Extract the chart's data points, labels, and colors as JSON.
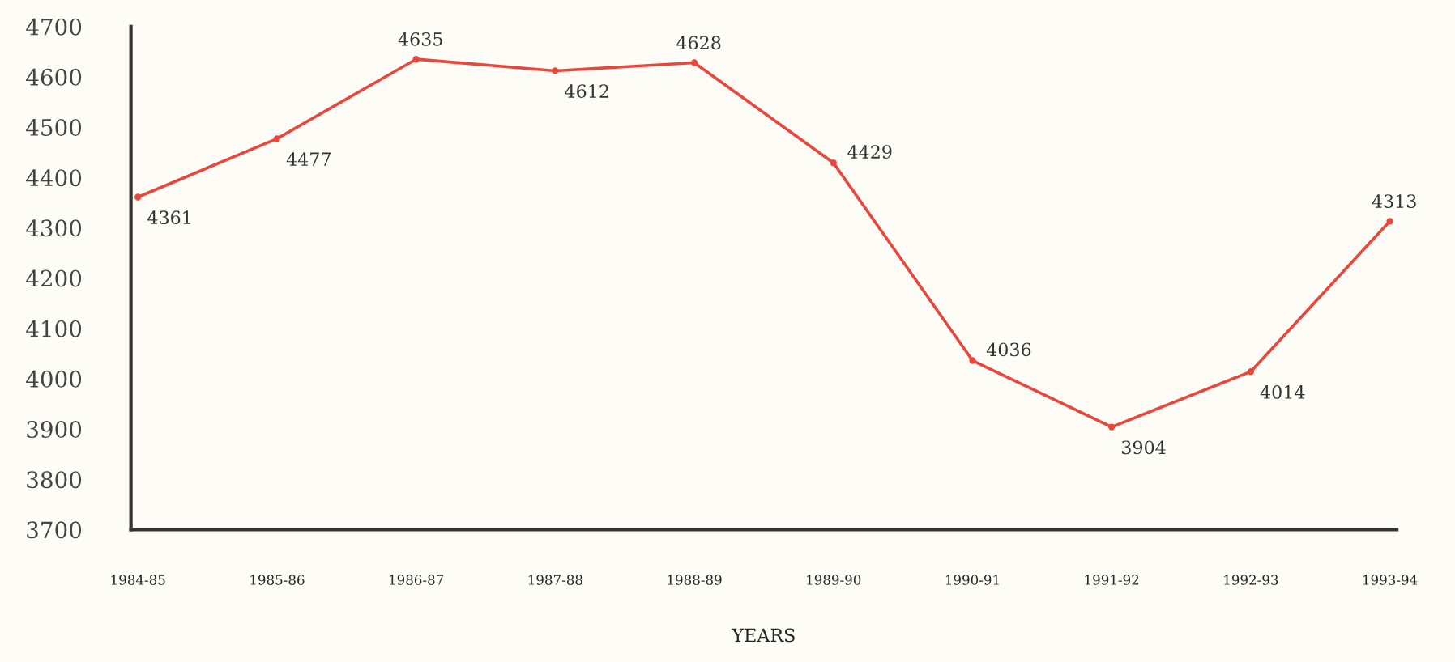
{
  "chart_data": {
    "type": "line",
    "xlabel": "YEARS",
    "categories": [
      "1984-85",
      "1985-86",
      "1986-87",
      "1987-88",
      "1988-89",
      "1989-90",
      "1990-91",
      "1991-92",
      "1992-93",
      "1993-94"
    ],
    "values": [
      4361,
      4477,
      4635,
      4612,
      4628,
      4429,
      4036,
      3904,
      4014,
      4313
    ],
    "color": "#e8473c",
    "marker": "circle",
    "line_style": "solid",
    "data_labels": true,
    "grid": false,
    "ylim": [
      3700,
      4700
    ],
    "yticks": [
      3700,
      3800,
      3900,
      4000,
      4100,
      4200,
      4300,
      4400,
      4500,
      4600,
      4700
    ]
  }
}
